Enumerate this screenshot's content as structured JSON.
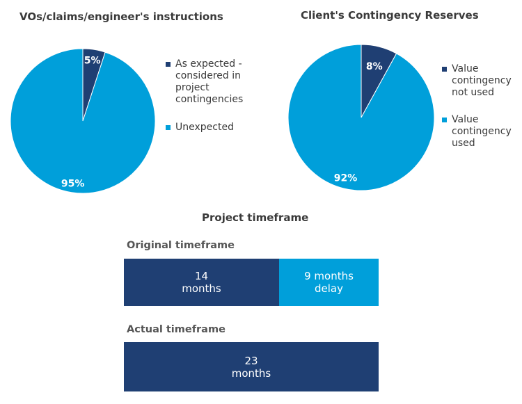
{
  "chart_data": [
    {
      "type": "pie",
      "title": "VOs/claims/engineer's instructions",
      "series": [
        {
          "name": "As expected - considered in project contingencies",
          "value": 5,
          "label": "5%",
          "color": "#1F3F73"
        },
        {
          "name": "Unexpected",
          "value": 95,
          "label": "95%",
          "color": "#009FDA"
        }
      ],
      "legend_position": "right"
    },
    {
      "type": "pie",
      "title": "Client's Contingency Reserves",
      "series": [
        {
          "name": "Value contingency not used",
          "value": 8,
          "label": "8%",
          "color": "#1F3F73"
        },
        {
          "name": "Value contingency used",
          "value": 92,
          "label": "92%",
          "color": "#009FDA"
        }
      ],
      "legend_position": "right"
    },
    {
      "type": "bar",
      "orientation": "horizontal",
      "stacked": true,
      "title": "Project timeframe",
      "categories": [
        "Original timeframe",
        "Actual timeframe"
      ],
      "series": [
        {
          "values": [
            14,
            23
          ],
          "labels": [
            "14\nmonths",
            "23\nmonths"
          ],
          "color": "#1F3F73"
        },
        {
          "values": [
            9,
            0
          ],
          "labels": [
            "9 months\ndelay",
            ""
          ],
          "color": "#009FDA"
        }
      ],
      "xlim": [
        0,
        23
      ]
    }
  ],
  "legend1": [
    {
      "text": "As expected -\nconsidered in\nproject\ncontingencies",
      "color": "#1F3F73"
    },
    {
      "text": "Unexpected",
      "color": "#009FDA"
    }
  ],
  "legend2": [
    {
      "text": "Value\ncontingency\nnot used",
      "color": "#1F3F73"
    },
    {
      "text": "Value\ncontingency\nused",
      "color": "#009FDA"
    }
  ]
}
